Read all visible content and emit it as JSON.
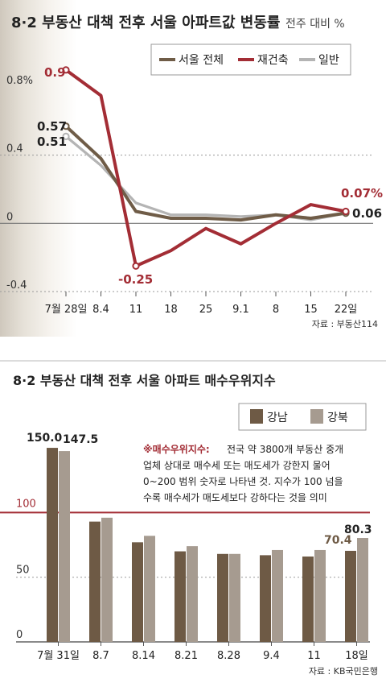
{
  "chart_data": [
    {
      "type": "line",
      "title": "8·2 부동산 대책 전후 서울 아파트값 변동률",
      "subtitle": "전주 대비 %",
      "categories": [
        "7월 28일",
        "8.4",
        "11",
        "18",
        "25",
        "9.1",
        "8",
        "15",
        "22일"
      ],
      "ylim": [
        -0.4,
        0.8
      ],
      "yticks": [
        {
          "value": 0.8,
          "label": "0.8%"
        },
        {
          "value": 0.4,
          "label": "0.4"
        },
        {
          "value": 0,
          "label": "0"
        },
        {
          "value": -0.4,
          "label": "-0.4"
        }
      ],
      "series": [
        {
          "name": "서울 전체",
          "color": "#6f5c47",
          "values": [
            0.57,
            0.38,
            0.07,
            0.03,
            0.03,
            0.02,
            0.05,
            0.03,
            0.06
          ]
        },
        {
          "name": "재건축",
          "color": "#a32d35",
          "values": [
            0.9,
            0.75,
            -0.25,
            -0.16,
            -0.03,
            -0.12,
            0.0,
            0.11,
            0.07
          ]
        },
        {
          "name": "일반",
          "color": "#b4b4b4",
          "values": [
            0.51,
            0.34,
            0.12,
            0.05,
            0.05,
            0.04,
            0.05,
            0.02,
            0.06
          ]
        }
      ],
      "annotations": [
        {
          "text": "0.9",
          "color": "#a32d35"
        },
        {
          "text": "0.57",
          "color": "#222222"
        },
        {
          "text": "0.51",
          "color": "#222222"
        },
        {
          "text": "-0.25",
          "color": "#a32d35"
        },
        {
          "text": "0.07%",
          "color": "#a32d35"
        },
        {
          "text": "0.06",
          "color": "#222222"
        }
      ],
      "legend": "top-right",
      "grid": true,
      "source": "자료 : 부동산114"
    },
    {
      "type": "bar",
      "title": "8·2 부동산 대책 전후 서울 아파트 매수우위지수",
      "categories": [
        "7월 31일",
        "8.7",
        "8.14",
        "8.21",
        "8.28",
        "9.4",
        "11",
        "18일"
      ],
      "ylim": [
        0,
        160
      ],
      "yticks": [
        {
          "value": 100,
          "label": "100"
        },
        {
          "value": 50,
          "label": "50"
        },
        {
          "value": 0,
          "label": "0"
        }
      ],
      "reference_line": 100,
      "series": [
        {
          "name": "강남",
          "color": "#6e5a45",
          "values": [
            150.0,
            93,
            77,
            70,
            68,
            67,
            66,
            70.4
          ]
        },
        {
          "name": "강북",
          "color": "#a69b90",
          "values": [
            147.5,
            96,
            82,
            74,
            68,
            71,
            71,
            80.3
          ]
        }
      ],
      "value_labels": [
        "150.0",
        "147.5",
        "70.4",
        "80.3"
      ],
      "note_title": "※매수우위지수:",
      "note_lines": [
        "전국 약 3800개 부동산 중개",
        "업체 상대로 매수세 또는 매도세가 강한지 물어",
        "0~200 범위 숫자로 나타낸 것. 지수가 100 넘을",
        "수록 매수세가 매도세보다 강하다는 것을 의미"
      ],
      "legend": "top-right",
      "grid": true,
      "source": "자료 : KB국민은행"
    }
  ]
}
